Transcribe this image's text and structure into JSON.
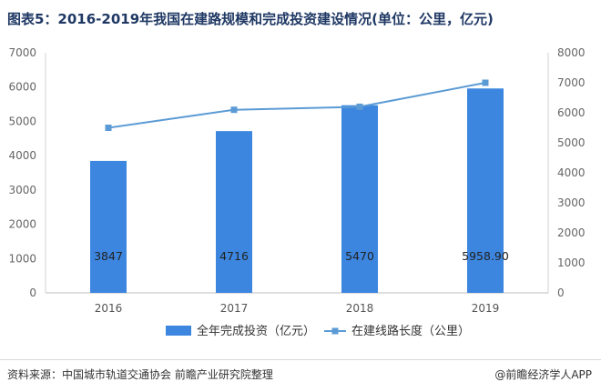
{
  "title": "图表5：2016-2019年我国在建路规模和完成投资建设情况(单位：公里，亿元)",
  "source": "资料来源：中国城市轨道交通协会 前瞻产业研究院整理",
  "credit": "@前瞻经济学人APP",
  "chart_data": {
    "type": "bar+line",
    "categories": [
      "2016",
      "2017",
      "2018",
      "2019"
    ],
    "series": [
      {
        "name": "全年完成投资（亿元）",
        "type": "bar",
        "axis": "left",
        "color": "#3c86e0",
        "values": [
          3847,
          4716,
          5470,
          5958.9
        ],
        "labels": [
          "3847",
          "4716",
          "5470",
          "5958.90"
        ]
      },
      {
        "name": "在建线路长度（公里）",
        "type": "line",
        "axis": "right",
        "color": "#5b9bd5",
        "marker": "square",
        "values": [
          5500,
          6100,
          6200,
          7000
        ]
      }
    ],
    "y_left": {
      "min": 0,
      "max": 7000,
      "ticks": [
        0,
        1000,
        2000,
        3000,
        4000,
        5000,
        6000,
        7000
      ]
    },
    "y_right": {
      "min": 0,
      "max": 8000,
      "ticks": [
        0,
        1000,
        2000,
        3000,
        4000,
        5000,
        6000,
        7000,
        8000
      ]
    },
    "grid": false,
    "legend_position": "bottom"
  }
}
